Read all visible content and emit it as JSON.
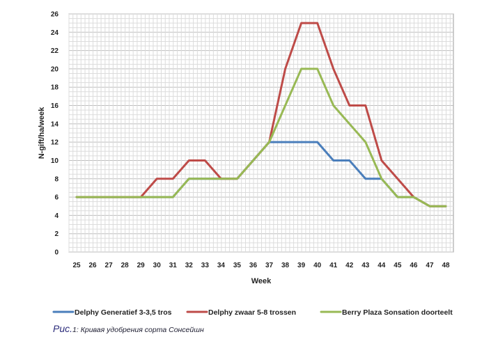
{
  "chart_data": {
    "type": "line",
    "xlabel": "Week",
    "ylabel": "N-gift/ha/week",
    "ylim": [
      0,
      26
    ],
    "y_ticks": [
      0,
      2,
      4,
      6,
      8,
      10,
      12,
      14,
      16,
      18,
      20,
      22,
      24,
      26
    ],
    "categories": [
      "25",
      "26",
      "27",
      "28",
      "29",
      "30",
      "31",
      "32",
      "33",
      "34",
      "35",
      "36",
      "37",
      "38",
      "39",
      "40",
      "41",
      "42",
      "43",
      "44",
      "45",
      "46",
      "47",
      "48"
    ],
    "grid": true,
    "legend_position": "bottom",
    "series": [
      {
        "name": "Delphy Generatief 3-3,5 tros",
        "color": "#4a7ebb",
        "values": [
          6,
          6,
          6,
          6,
          6,
          6,
          6,
          8,
          8,
          8,
          8,
          10,
          12,
          12,
          12,
          12,
          10,
          10,
          8,
          8,
          6,
          6,
          5,
          5
        ]
      },
      {
        "name": "Delphy zwaar 5-8 trossen",
        "color": "#be4b48",
        "values": [
          6,
          6,
          6,
          6,
          6,
          8,
          8,
          10,
          10,
          8,
          8,
          10,
          12,
          20,
          25,
          25,
          20,
          16,
          16,
          10,
          8,
          6,
          5,
          5
        ]
      },
      {
        "name": "Berry Plaza Sonsation doorteelt",
        "color": "#98b954",
        "values": [
          6,
          6,
          6,
          6,
          6,
          6,
          6,
          8,
          8,
          8,
          8,
          10,
          12,
          16,
          20,
          20,
          16,
          14,
          12,
          8,
          6,
          6,
          5,
          5
        ]
      }
    ]
  },
  "caption": {
    "prefix": "Рис.",
    "text": "1: Кривая удобрения сорта Сонсейшн"
  }
}
